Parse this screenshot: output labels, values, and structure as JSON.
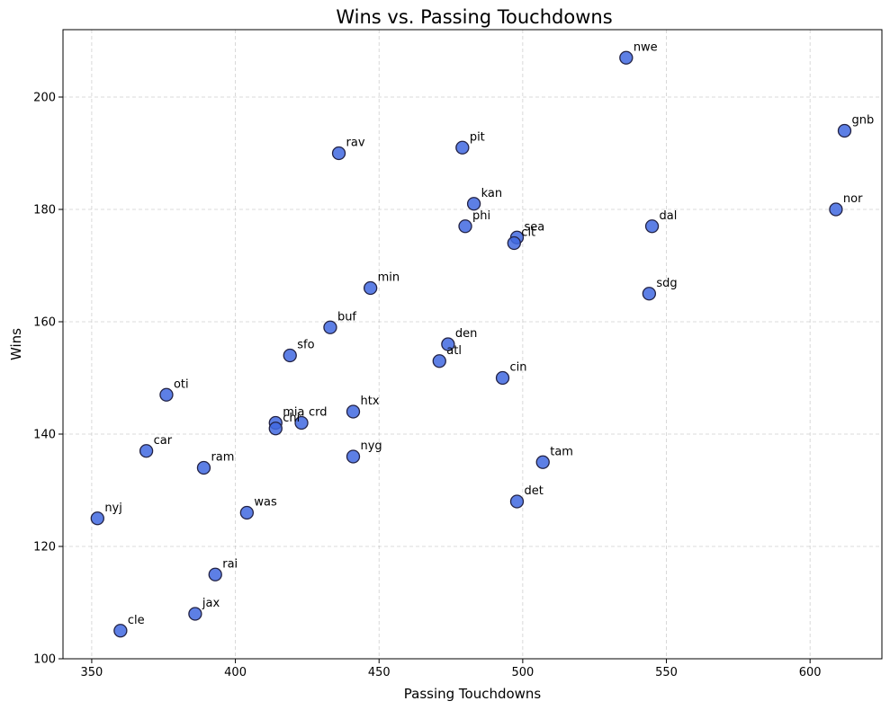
{
  "chart_data": {
    "type": "scatter",
    "title": "Wins vs. Passing Touchdowns",
    "xlabel": "Passing Touchdowns",
    "ylabel": "Wins",
    "xlim": [
      340,
      625
    ],
    "ylim": [
      100,
      212
    ],
    "xticks": [
      350,
      400,
      450,
      500,
      550,
      600
    ],
    "yticks": [
      100,
      120,
      140,
      160,
      180,
      200
    ],
    "grid": true,
    "point_color": "#4169e1",
    "points": [
      {
        "label": "nwe",
        "x": 536,
        "y": 207
      },
      {
        "label": "gnb",
        "x": 612,
        "y": 194
      },
      {
        "label": "pit",
        "x": 479,
        "y": 191
      },
      {
        "label": "rav",
        "x": 436,
        "y": 190
      },
      {
        "label": "kan",
        "x": 483,
        "y": 181
      },
      {
        "label": "nor",
        "x": 609,
        "y": 180
      },
      {
        "label": "phi",
        "x": 480,
        "y": 177
      },
      {
        "label": "dal",
        "x": 545,
        "y": 177
      },
      {
        "label": "sea",
        "x": 498,
        "y": 175
      },
      {
        "label": "clt",
        "x": 497,
        "y": 174
      },
      {
        "label": "min",
        "x": 447,
        "y": 166
      },
      {
        "label": "sdg",
        "x": 544,
        "y": 165
      },
      {
        "label": "buf",
        "x": 433,
        "y": 159
      },
      {
        "label": "den",
        "x": 474,
        "y": 156
      },
      {
        "label": "sfo",
        "x": 419,
        "y": 154
      },
      {
        "label": "atl",
        "x": 471,
        "y": 153
      },
      {
        "label": "cin",
        "x": 493,
        "y": 150
      },
      {
        "label": "oti",
        "x": 376,
        "y": 147
      },
      {
        "label": "htx",
        "x": 441,
        "y": 144
      },
      {
        "label": "mia",
        "x": 414,
        "y": 142
      },
      {
        "label": "crd",
        "x": 423,
        "y": 142
      },
      {
        "label": "chi",
        "x": 414,
        "y": 141
      },
      {
        "label": "car",
        "x": 369,
        "y": 137
      },
      {
        "label": "nyg",
        "x": 441,
        "y": 136
      },
      {
        "label": "tam",
        "x": 507,
        "y": 135
      },
      {
        "label": "ram",
        "x": 389,
        "y": 134
      },
      {
        "label": "det",
        "x": 498,
        "y": 128
      },
      {
        "label": "was",
        "x": 404,
        "y": 126
      },
      {
        "label": "nyj",
        "x": 352,
        "y": 125
      },
      {
        "label": "rai",
        "x": 393,
        "y": 115
      },
      {
        "label": "jax",
        "x": 386,
        "y": 108
      },
      {
        "label": "cle",
        "x": 360,
        "y": 105
      }
    ]
  }
}
